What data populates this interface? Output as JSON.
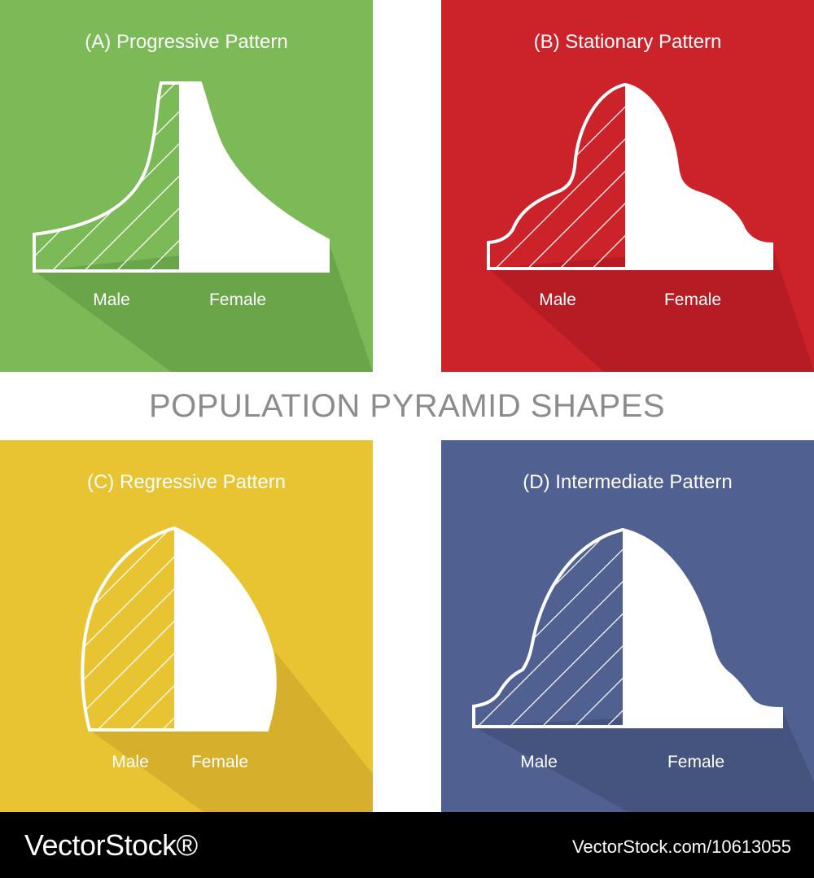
{
  "title": "POPULATION PYRAMID SHAPES",
  "panels": [
    {
      "id": "a",
      "title": "(A) Progressive Pattern",
      "male_label": "Male",
      "female_label": "Female",
      "background": "#7cb957",
      "shadow": "#6aa649"
    },
    {
      "id": "b",
      "title": "(B) Stationary Pattern",
      "male_label": "Male",
      "female_label": "Female",
      "background": "#cc2229",
      "shadow": "#b51c24"
    },
    {
      "id": "c",
      "title": "(C) Regressive Pattern",
      "male_label": "Male",
      "female_label": "Female",
      "background": "#e8c432",
      "shadow": "#d6b02c"
    },
    {
      "id": "d",
      "title": "(D) Intermediate Pattern",
      "male_label": "Male",
      "female_label": "Female",
      "background": "#506090",
      "shadow": "#45537f"
    }
  ],
  "footer": {
    "logo": "VectorStock®",
    "image_id": "VectorStock.com/10613055"
  }
}
